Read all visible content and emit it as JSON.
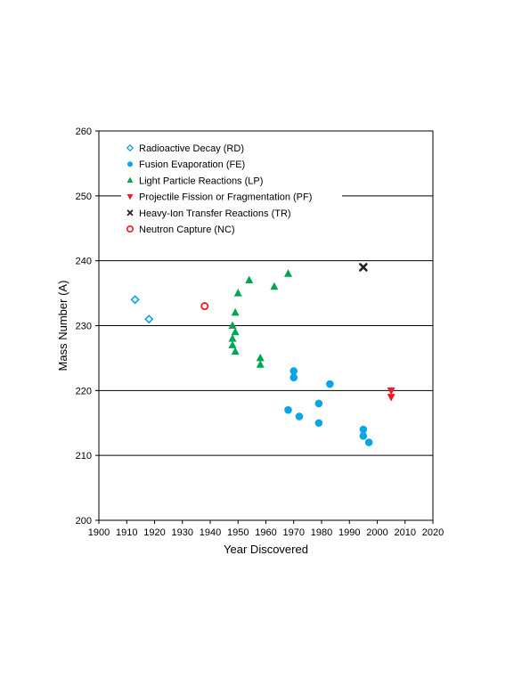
{
  "chart_data": {
    "type": "scatter",
    "title": "",
    "xlabel": "Year Discovered",
    "ylabel": "Mass Number (A)",
    "xlim": [
      1900,
      2020
    ],
    "ylim": [
      200,
      260
    ],
    "xticks": [
      1900,
      1910,
      1920,
      1930,
      1940,
      1950,
      1960,
      1970,
      1980,
      1990,
      2000,
      2010,
      2020
    ],
    "yticks": [
      200,
      210,
      220,
      230,
      240,
      250,
      260
    ],
    "grid": "horizontal",
    "legend_position": "top-left",
    "series": [
      {
        "name": "Radioactive Decay (RD)",
        "marker": "diamond-open",
        "color": "#0aa5e6",
        "points": [
          [
            1913,
            234
          ],
          [
            1918,
            231
          ]
        ]
      },
      {
        "name": "Fusion Evaporation (FE)",
        "marker": "circle",
        "color": "#0aa5e6",
        "points": [
          [
            1968,
            217
          ],
          [
            1970,
            223
          ],
          [
            1970,
            222
          ],
          [
            1972,
            216
          ],
          [
            1979,
            218
          ],
          [
            1979,
            215
          ],
          [
            1983,
            221
          ],
          [
            1995,
            214
          ],
          [
            1995,
            213
          ],
          [
            1997,
            212
          ]
        ]
      },
      {
        "name": "Light Particle Reactions (LP)",
        "marker": "triangle-up",
        "color": "#00a651",
        "points": [
          [
            1948,
            230
          ],
          [
            1948,
            228
          ],
          [
            1948,
            227
          ],
          [
            1949,
            232
          ],
          [
            1949,
            229
          ],
          [
            1949,
            226
          ],
          [
            1950,
            235
          ],
          [
            1954,
            237
          ],
          [
            1958,
            225
          ],
          [
            1958,
            224
          ],
          [
            1963,
            236
          ],
          [
            1968,
            238
          ]
        ]
      },
      {
        "name": "Projectile Fission or Fragmentation (PF)",
        "marker": "triangle-down",
        "color": "#ee1c25",
        "points": [
          [
            2005,
            220
          ],
          [
            2005,
            219
          ]
        ]
      },
      {
        "name": "Heavy-Ion Transfer Reactions (TR)",
        "marker": "cross",
        "color": "#222222",
        "points": [
          [
            1995,
            239
          ]
        ]
      },
      {
        "name": "Neutron Capture (NC)",
        "marker": "circle-open",
        "color": "#ee1c25",
        "points": [
          [
            1938,
            233
          ]
        ]
      }
    ]
  }
}
